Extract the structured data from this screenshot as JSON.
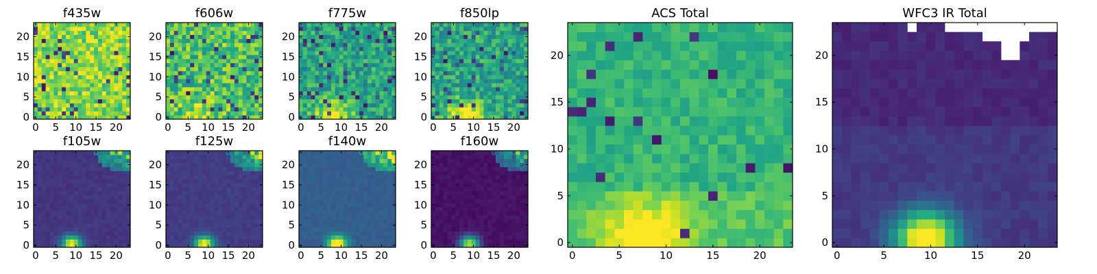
{
  "chart_data": [
    {
      "type": "heatmap",
      "title": "f435w",
      "xticks": [
        0,
        5,
        10,
        15,
        20
      ],
      "yticks": [
        0,
        5,
        10,
        15,
        20
      ],
      "grid_size": 24,
      "colormap": "viridis",
      "pattern": "noisy-bright",
      "seed": 11
    },
    {
      "type": "heatmap",
      "title": "f606w",
      "xticks": [
        0,
        5,
        10,
        15,
        20
      ],
      "yticks": [
        0,
        5,
        10,
        15,
        20
      ],
      "grid_size": 24,
      "colormap": "viridis",
      "pattern": "noisy-mid",
      "seed": 23
    },
    {
      "type": "heatmap",
      "title": "f775w",
      "xticks": [
        0,
        5,
        10,
        15,
        20
      ],
      "yticks": [
        0,
        5,
        10,
        15,
        20
      ],
      "grid_size": 24,
      "colormap": "viridis",
      "pattern": "noisy-low",
      "seed": 37
    },
    {
      "type": "heatmap",
      "title": "f850lp",
      "xticks": [
        0,
        5,
        10,
        15,
        20
      ],
      "yticks": [
        0,
        5,
        10,
        15,
        20
      ],
      "grid_size": 24,
      "colormap": "viridis",
      "pattern": "noisy-low",
      "seed": 41
    },
    {
      "type": "heatmap",
      "title": "ACS Total",
      "xticks": [
        0,
        5,
        10,
        15,
        20
      ],
      "yticks": [
        0,
        5,
        10,
        15,
        20
      ],
      "grid_size": 24,
      "colormap": "viridis",
      "pattern": "acs-total",
      "seed": 53
    },
    {
      "type": "heatmap",
      "title": "WFC3 IR Total",
      "xticks": [
        0,
        5,
        10,
        15,
        20
      ],
      "yticks": [
        0,
        5,
        10,
        15,
        20
      ],
      "grid_size": 24,
      "colormap": "viridis",
      "pattern": "ir-total",
      "seed": 67
    },
    {
      "type": "heatmap",
      "title": "f105w",
      "xticks": [
        0,
        5,
        10,
        15,
        20
      ],
      "yticks": [
        0,
        5,
        10,
        15,
        20
      ],
      "grid_size": 24,
      "colormap": "viridis",
      "pattern": "ir-band",
      "base": 0.16,
      "seed": 71
    },
    {
      "type": "heatmap",
      "title": "f125w",
      "xticks": [
        0,
        5,
        10,
        15,
        20
      ],
      "yticks": [
        0,
        5,
        10,
        15,
        20
      ],
      "grid_size": 24,
      "colormap": "viridis",
      "pattern": "ir-band",
      "base": 0.18,
      "seed": 83
    },
    {
      "type": "heatmap",
      "title": "f140w",
      "xticks": [
        0,
        5,
        10,
        15,
        20
      ],
      "yticks": [
        0,
        5,
        10,
        15,
        20
      ],
      "grid_size": 24,
      "colormap": "viridis",
      "pattern": "ir-band",
      "base": 0.3,
      "seed": 97
    },
    {
      "type": "heatmap",
      "title": "f160w",
      "xticks": [
        0,
        5,
        10,
        15,
        20
      ],
      "yticks": [
        0,
        5,
        10,
        15,
        20
      ],
      "grid_size": 24,
      "colormap": "viridis",
      "pattern": "ir-band",
      "base": 0.05,
      "seed": 101
    }
  ]
}
